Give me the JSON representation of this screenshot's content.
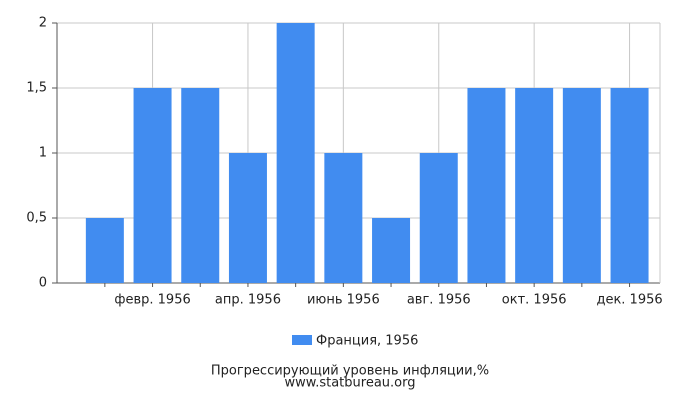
{
  "chart_data": {
    "type": "bar",
    "title": "Прогрессирующий уровень инфляции,%",
    "subtitle": "www.statbureau.org",
    "categories": [
      null,
      "февр. 1956",
      null,
      "апр. 1956",
      null,
      "июнь 1956",
      null,
      "авг. 1956",
      null,
      "окт. 1956",
      null,
      "дек. 1956"
    ],
    "series": [
      {
        "name": "Франция, 1956",
        "color": "#418cf0",
        "values": [
          0.5,
          1.5,
          1.5,
          1,
          2,
          1,
          0.5,
          1,
          1.5,
          1.5,
          1.5,
          1.5
        ]
      }
    ],
    "ylim": [
      0,
      2
    ],
    "yticks": [
      0,
      {
        "value": 0.5,
        "label": "0,5"
      },
      1,
      {
        "value": 1.5,
        "label": "1,5"
      },
      2
    ],
    "grid": true
  }
}
